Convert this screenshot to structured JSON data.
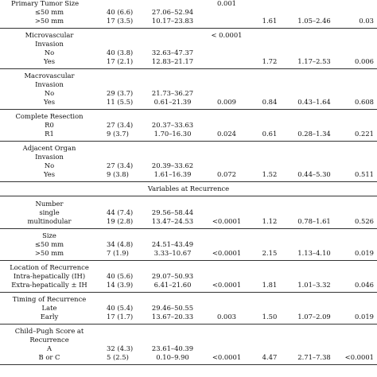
{
  "groups": [
    {
      "label_lines": [
        "Primary Tumor Size"
      ],
      "label_align": "left",
      "p1": "0.001",
      "rows": [
        {
          "label": "≤50 mm",
          "n": "40 (6.6)",
          "ci": "27.06–52.94",
          "p1": "",
          "hr": "",
          "ci2": "",
          "p2": ""
        },
        {
          "label": ">50 mm",
          "n": "17 (3.5)",
          "ci": "10.17–23.83",
          "p1": "",
          "hr": "1.61",
          "ci2": "1.05–2.46",
          "p2": "0.03"
        }
      ]
    },
    {
      "label_lines": [
        "Microvascular",
        "Invasion"
      ],
      "p1": "< 0.0001",
      "rows": [
        {
          "label": "No",
          "n": "40 (3.8)",
          "ci": "32.63–47.37",
          "p1": "",
          "hr": "",
          "ci2": "",
          "p2": ""
        },
        {
          "label": "Yes",
          "n": "17 (2.1)",
          "ci": "12.83–21.17",
          "p1": "",
          "hr": "1.72",
          "ci2": "1.17–2.53",
          "p2": "0.006"
        }
      ]
    },
    {
      "label_lines": [
        "Macrovascular",
        "Invasion"
      ],
      "p1": "",
      "rows": [
        {
          "label": "No",
          "n": "29 (3.7)",
          "ci": "21.73–36.27",
          "p1": "",
          "hr": "",
          "ci2": "",
          "p2": ""
        },
        {
          "label": "Yes",
          "n": "11 (5.5)",
          "ci": "0.61–21.39",
          "p1": "0.009",
          "hr": "0.84",
          "ci2": "0.43–1.64",
          "p2": "0.608"
        }
      ]
    },
    {
      "label_lines": [
        "Complete Resection"
      ],
      "p1": "",
      "rows": [
        {
          "label": "R0",
          "n": "27 (3.4)",
          "ci": "20.37–33.63",
          "p1": "",
          "hr": "",
          "ci2": "",
          "p2": ""
        },
        {
          "label": "R1",
          "n": "9 (3.7)",
          "ci": "1.70–16.30",
          "p1": "0.024",
          "hr": "0.61",
          "ci2": "0.28–1.34",
          "p2": "0.221"
        }
      ]
    },
    {
      "label_lines": [
        "Adjacent Organ",
        "Invasion"
      ],
      "p1": "",
      "rows": [
        {
          "label": "No",
          "n": "27 (3.4)",
          "ci": "20.39–33.62",
          "p1": "",
          "hr": "",
          "ci2": "",
          "p2": ""
        },
        {
          "label": "Yes",
          "n": "9 (3.8)",
          "ci": "1.61–16.39",
          "p1": "0.072",
          "hr": "1.52",
          "ci2": "0.44–5.30",
          "p2": "0.511"
        }
      ]
    }
  ],
  "section_title": "Variables at Recurrence",
  "recurrence_groups": [
    {
      "label_lines": [
        "Number"
      ],
      "p1": "",
      "rows": [
        {
          "label": "single",
          "n": "44 (7.4)",
          "ci": "29.56–58.44",
          "p1": "",
          "hr": "",
          "ci2": "",
          "p2": ""
        },
        {
          "label": "multinodular",
          "n": "19 (2.8)",
          "ci": "13.47–24.53",
          "p1": "<0.0001",
          "hr": "1.12",
          "ci2": "0.78–1.61",
          "p2": "0.526"
        }
      ]
    },
    {
      "label_lines": [
        "Size"
      ],
      "p1": "",
      "rows": [
        {
          "label": "≤50 mm",
          "n": "34 (4.8)",
          "ci": "24.51–43.49",
          "p1": "",
          "hr": "",
          "ci2": "",
          "p2": ""
        },
        {
          "label": ">50 mm",
          "n": "7 (1.9)",
          "ci": "3.33–10.67",
          "p1": "<0.0001",
          "hr": "2.15",
          "ci2": "1.13–4.10",
          "p2": "0.019"
        }
      ]
    },
    {
      "label_lines": [
        "Location of Recurrence"
      ],
      "p1": "",
      "rows": [
        {
          "label": "Intra-hepatically (IH)",
          "n": "40 (5.6)",
          "ci": "29.07–50.93",
          "p1": "",
          "hr": "",
          "ci2": "",
          "p2": ""
        },
        {
          "label": "Extra-hepatically ± IH",
          "n": "14 (3.9)",
          "ci": "6.41–21.60",
          "p1": "<0.0001",
          "hr": "1.81",
          "ci2": "1.01–3.32",
          "p2": "0.046"
        }
      ]
    },
    {
      "label_lines": [
        "Timing of Recurrence"
      ],
      "p1": "",
      "rows": [
        {
          "label": "Late",
          "n": "40 (5.4)",
          "ci": "29.46–50.55",
          "p1": "",
          "hr": "",
          "ci2": "",
          "p2": ""
        },
        {
          "label": "Early",
          "n": "17 (1.7)",
          "ci": "13.67–20.33",
          "p1": "0.003",
          "hr": "1.50",
          "ci2": "1.07–2.09",
          "p2": "0.019"
        }
      ]
    },
    {
      "label_lines": [
        "Child–Pugh Score at",
        "Recurrence"
      ],
      "p1": "",
      "rows": [
        {
          "label": "A",
          "n": "32 (4.3)",
          "ci": "23.61–40.39",
          "p1": "",
          "hr": "",
          "ci2": "",
          "p2": ""
        },
        {
          "label": "B or C",
          "n": "5 (2.5)",
          "ci": "0.10–9.90",
          "p1": "<0.0001",
          "hr": "4.47",
          "ci2": "2.71–7.38",
          "p2": "<0.0001"
        }
      ]
    }
  ]
}
